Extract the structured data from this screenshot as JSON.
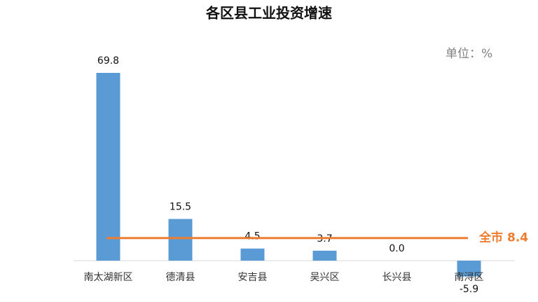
{
  "chart_data": {
    "type": "bar",
    "title": "各区县工业投资增速",
    "unit_label": "单位：%",
    "categories": [
      "南太湖新区",
      "德清县",
      "安吉县",
      "吴兴区",
      "长兴县",
      "南浔区"
    ],
    "values": [
      69.8,
      15.5,
      4.5,
      3.7,
      0,
      -5.9
    ],
    "value_labels": [
      "69.8",
      "15.5",
      "4.5",
      "3.7",
      "0.0",
      "-5.9"
    ],
    "color": "#5b9bd5",
    "reference_line": {
      "label": "全市",
      "value": 8.4,
      "color": "#ed7d31"
    }
  }
}
